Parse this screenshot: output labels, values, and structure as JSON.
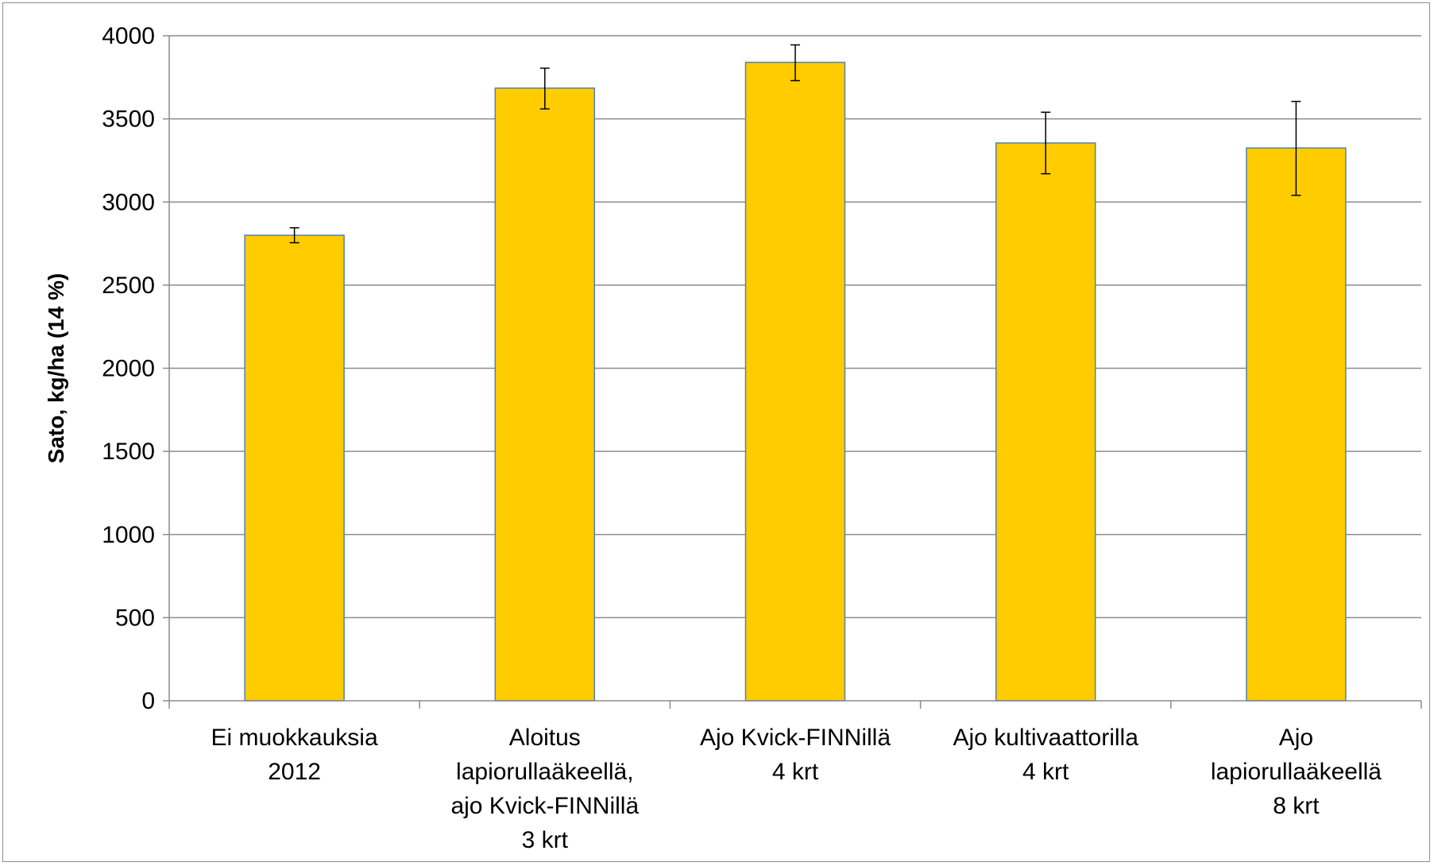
{
  "chart_data": {
    "type": "bar",
    "title": "",
    "xlabel": "",
    "ylabel": "Sato, kg/ha (14 %)",
    "ylim": [
      0,
      4000
    ],
    "yticks": [
      0,
      500,
      1000,
      1500,
      2000,
      2500,
      3000,
      3500,
      4000
    ],
    "grid": true,
    "legend": "none",
    "categories": [
      [
        "Ei muokkauksia",
        "2012"
      ],
      [
        "Aloitus",
        "lapiorullaäkeellä,",
        "ajo Kvick-FINNillä",
        "3 krt"
      ],
      [
        "Ajo Kvick-FINNillä",
        "4 krt"
      ],
      [
        "Ajo kultivaattorilla",
        "4 krt"
      ],
      [
        "Ajo",
        "lapiorullaäkeellä",
        "8 krt"
      ]
    ],
    "values": [
      2800,
      3685,
      3840,
      3355,
      3325
    ],
    "error_low": [
      2755,
      3560,
      3730,
      3170,
      3040
    ],
    "error_high": [
      2845,
      3805,
      3945,
      3540,
      3605
    ],
    "colors": {
      "bar_fill": "#ffcc00",
      "bar_stroke": "#4f81bd",
      "grid": "#8c8c8c",
      "error_bar": "#000000"
    }
  }
}
